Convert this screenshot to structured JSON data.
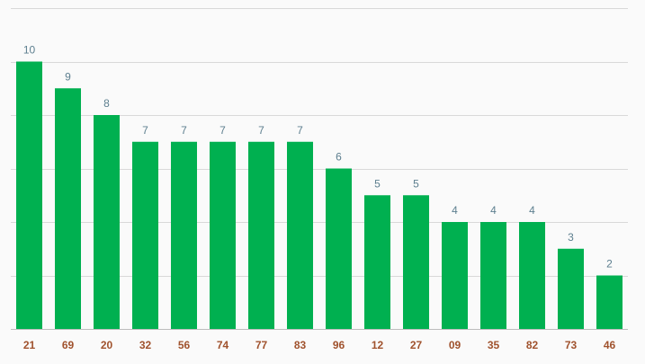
{
  "chart_data": {
    "type": "bar",
    "categories": [
      "21",
      "69",
      "20",
      "32",
      "56",
      "74",
      "77",
      "83",
      "96",
      "12",
      "27",
      "09",
      "35",
      "82",
      "73",
      "46"
    ],
    "values": [
      10,
      9,
      8,
      7,
      7,
      7,
      7,
      7,
      6,
      5,
      5,
      4,
      4,
      4,
      3,
      2
    ],
    "ylim": [
      0,
      12
    ],
    "y_grid_step": 2,
    "grid": true,
    "data_labels": true,
    "xlabel": "",
    "ylabel": "",
    "title": "",
    "colors": {
      "bar": "#00b050",
      "value_label": "#5d7f8f",
      "tick_label": "#a0522d",
      "grid": "#d9d9d9",
      "background": "#fafafa"
    }
  }
}
